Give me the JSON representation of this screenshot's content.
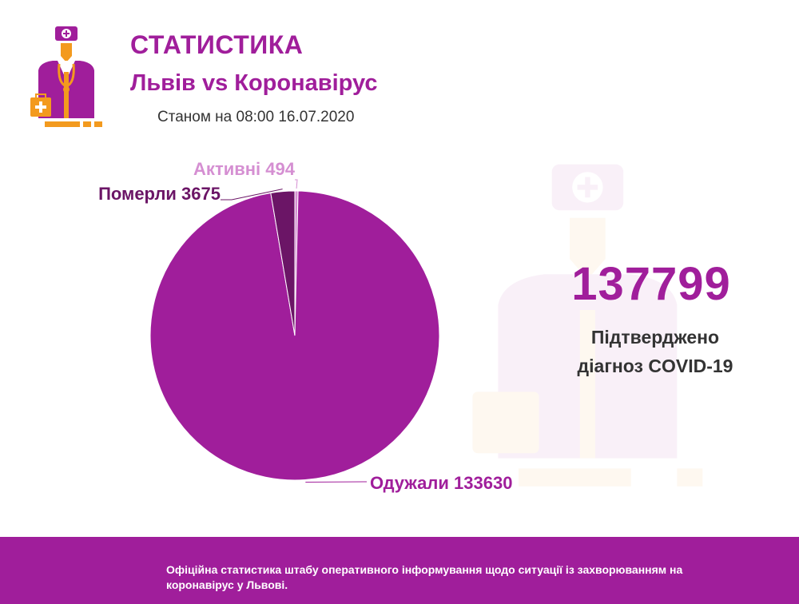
{
  "header": {
    "title": "СТАТИСТИКА",
    "subtitle": "Львів vs Коронавірус",
    "as_of": "Станом на 08:00 16.07.2020",
    "logo_icon": "doctor-icon"
  },
  "summary": {
    "total": "137799",
    "label_line1": "Підтверджено",
    "label_line2": "діагноз COVID-19"
  },
  "footer": {
    "text": "Офіційна статистика штабу оперативного інформування щодо ситуації із захворюванням на коронавірус у Львові."
  },
  "colors": {
    "brand": "#a01e9b",
    "died": "#6b1566",
    "active": "#d58fd2",
    "recovered": "#a01e9b"
  },
  "chart_data": {
    "type": "pie",
    "slices": [
      {
        "label": "Активні 494",
        "value": 494,
        "color": "#d58fd2"
      },
      {
        "label": "Одужали 133630",
        "value": 133630,
        "color": "#a01e9b"
      },
      {
        "label": "Померли 3675",
        "value": 3675,
        "color": "#6b1566"
      }
    ]
  }
}
